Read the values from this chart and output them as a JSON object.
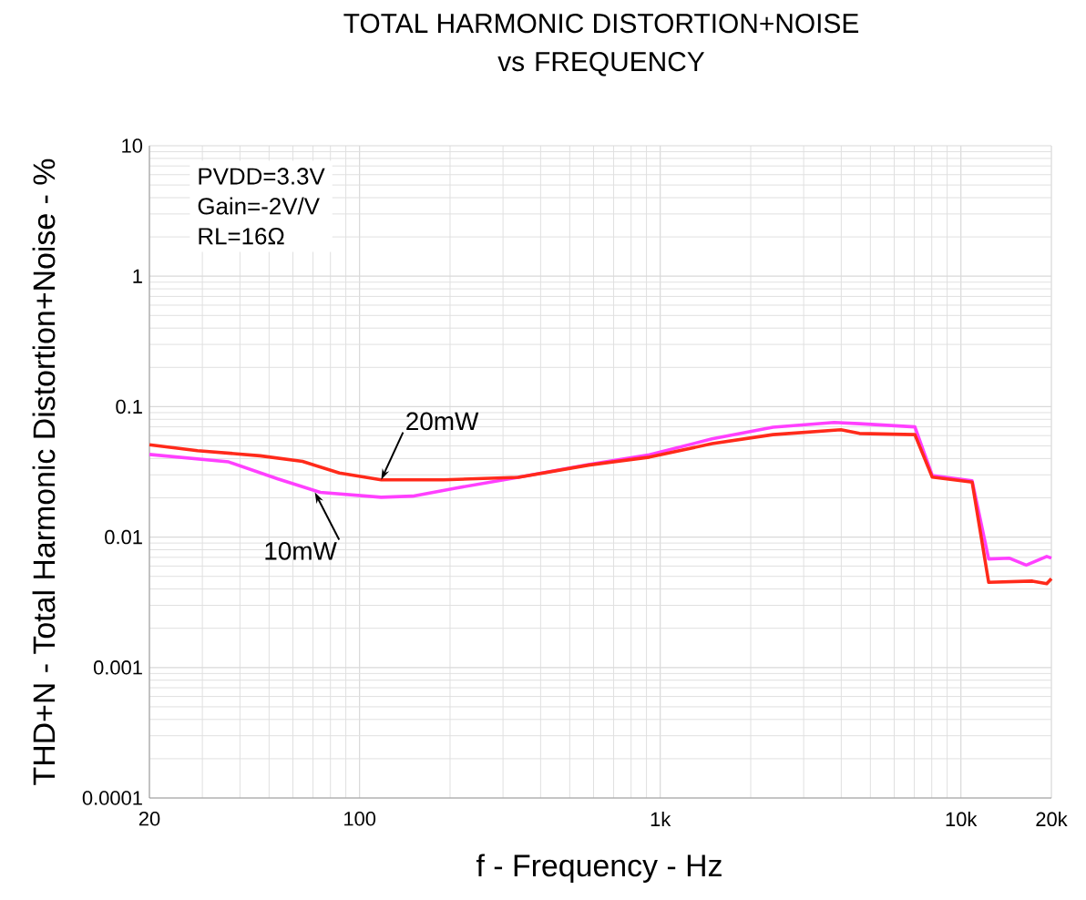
{
  "chart_data": {
    "type": "line",
    "title": "TOTAL HARMONIC DISTORTION+NOISE",
    "subtitle": "vs FREQUENCY",
    "xlabel": "f - Frequency - Hz",
    "ylabel": "THD+N - Total Harmonic Distortion+Noise - %",
    "log": "xy",
    "grid": true,
    "xlim": [
      20,
      20000
    ],
    "ylim": [
      0.0001,
      10
    ],
    "xticks": [
      20,
      100,
      {
        "value": 1000,
        "label": "1k"
      },
      {
        "value": 10000,
        "label": "10k"
      },
      {
        "value": 20000,
        "label": "20k"
      }
    ],
    "yticks": [
      0.0001,
      0.001,
      0.01,
      0.1,
      1,
      10
    ],
    "series": [
      {
        "color": "#ff40ff",
        "x": [
          20,
          36.7,
          53.5,
          74,
          118,
          150,
          208,
          337,
          577,
          920,
          1487,
          2370,
          3790,
          4600,
          7030,
          8030,
          10900,
          12370,
          14460,
          16500,
          19300,
          20000
        ],
        "values": [
          0.043,
          0.0377,
          0.0279,
          0.022,
          0.0202,
          0.0206,
          0.0237,
          0.0287,
          0.036,
          0.0428,
          0.0566,
          0.0695,
          0.0757,
          0.074,
          0.07,
          0.0297,
          0.027,
          0.0068,
          0.0069,
          0.0061,
          0.0071,
          0.0069
        ]
      },
      {
        "color": "#ff2a1a",
        "x": [
          20,
          28.9,
          46.7,
          64.6,
          85.7,
          118,
          190,
          337,
          577,
          920,
          1487,
          2370,
          3990,
          4600,
          7030,
          8030,
          10900,
          12370,
          17300,
          19300,
          20000
        ],
        "values": [
          0.051,
          0.046,
          0.042,
          0.038,
          0.031,
          0.0275,
          0.0275,
          0.0287,
          0.0356,
          0.041,
          0.052,
          0.061,
          0.0665,
          0.0623,
          0.061,
          0.0288,
          0.0264,
          0.0045,
          0.0046,
          0.0044,
          0.0048
        ]
      }
    ],
    "annotations": [
      "PVDD=3.3V",
      "Gain=-2V/V",
      "RL=16Ω",
      {
        "text": "20mW",
        "x": 118,
        "y": 0.0275
      },
      {
        "text": "10mW",
        "x": 71,
        "y": 0.022
      }
    ]
  }
}
